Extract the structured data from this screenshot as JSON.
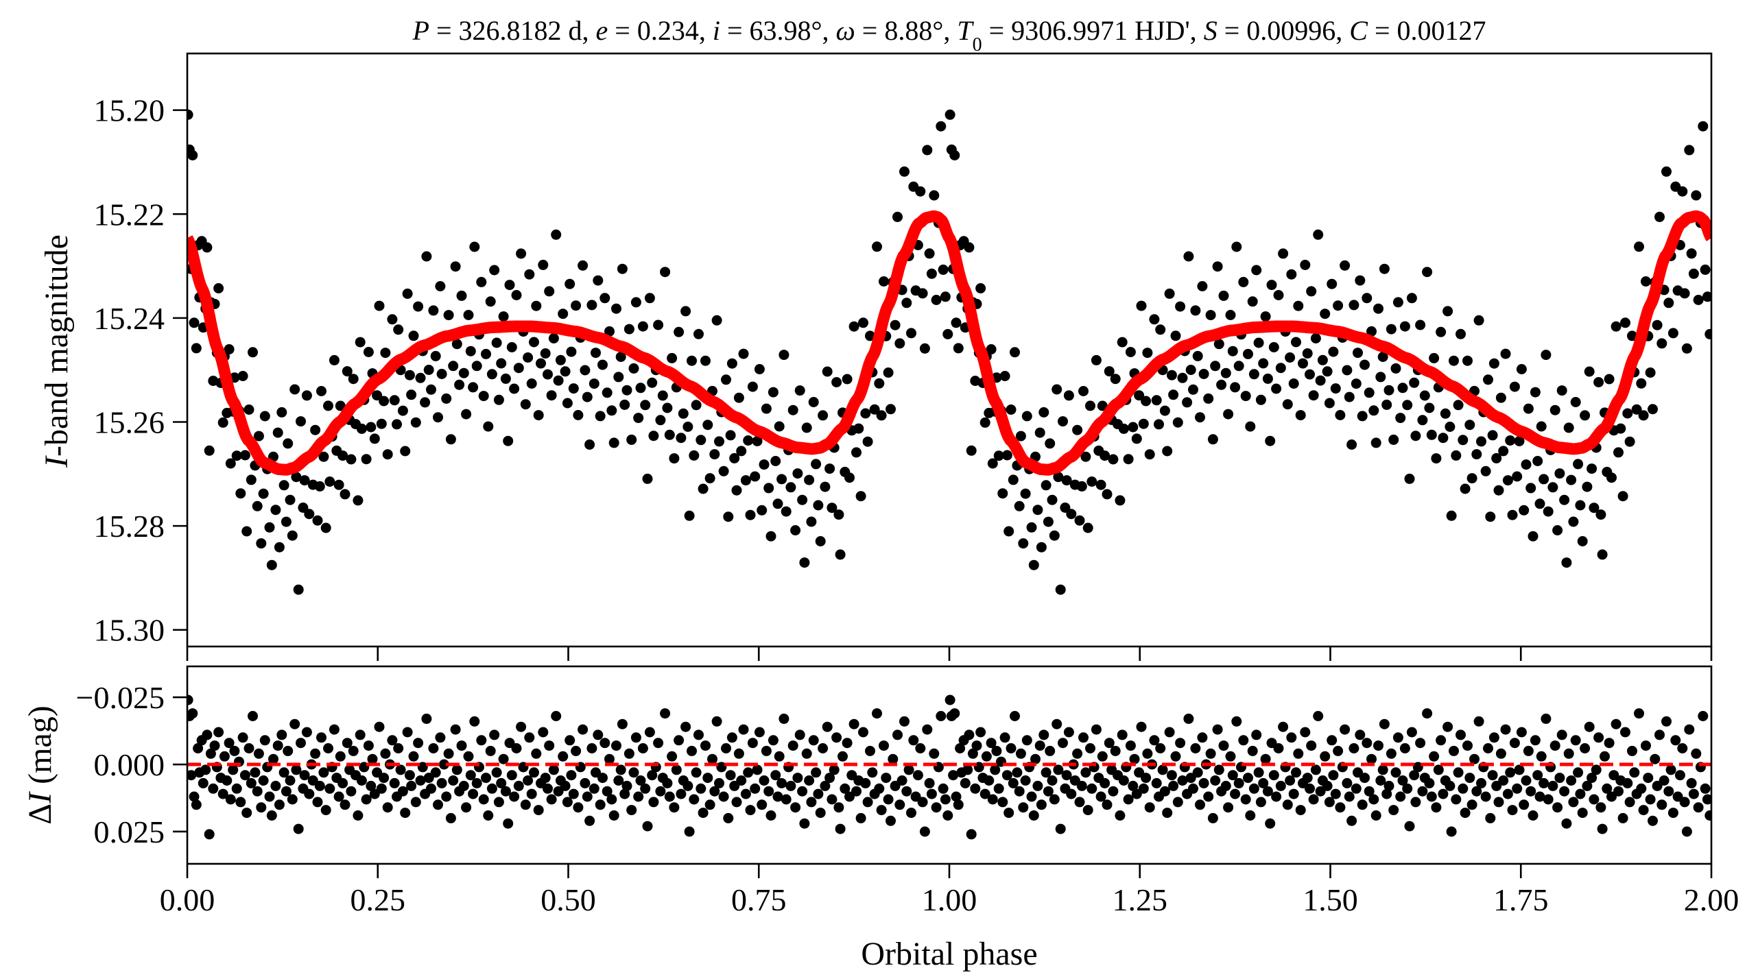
{
  "chart_data": [
    {
      "panel": "light-curve",
      "type": "scatter",
      "title_parts": [
        {
          "t": "P",
          "i": true
        },
        {
          "t": " = 326.8182 d, "
        },
        {
          "t": "e",
          "i": true
        },
        {
          "t": " = 0.234, "
        },
        {
          "t": "i",
          "i": true
        },
        {
          "t": " = 63.98°, "
        },
        {
          "t": "ω",
          "i": true
        },
        {
          "t": " = 8.88°, "
        },
        {
          "t": "T",
          "i": true
        },
        {
          "t": "0",
          "sub": true
        },
        {
          "t": " = 9306.9971 HJD', "
        },
        {
          "t": "S",
          "i": true
        },
        {
          "t": " = 0.00996, "
        },
        {
          "t": "C",
          "i": true
        },
        {
          "t": " = 0.00127"
        }
      ],
      "title": "P = 326.8182 d, e = 0.234, i = 63.98°, ω = 8.88°, T0 = 9306.9971 HJD', S = 0.00996, C = 0.00127",
      "ylabel_italic": "I",
      "ylabel_rest": "-band magnitude",
      "ylabel": "I-band magnitude",
      "xlim": [
        0.0,
        2.0
      ],
      "ylim": [
        15.1891,
        15.3032
      ],
      "y_inverted": true,
      "yticks": [
        15.2,
        15.22,
        15.24,
        15.26,
        15.28,
        15.3
      ],
      "ytick_labels": [
        "15.20",
        "15.22",
        "15.24",
        "15.26",
        "15.28",
        "15.30"
      ],
      "xticks": [
        0.0,
        0.25,
        0.5,
        0.75,
        1.0,
        1.25,
        1.5,
        1.75,
        2.0
      ],
      "grid": false,
      "marker_color": "#000000",
      "model_color": "#ff0000",
      "model_curve": {
        "phase": [
          0.0,
          0.02,
          0.04,
          0.06,
          0.08,
          0.1,
          0.12,
          0.13,
          0.14,
          0.16,
          0.18,
          0.2,
          0.22,
          0.25,
          0.28,
          0.31,
          0.34,
          0.37,
          0.4,
          0.43,
          0.45,
          0.48,
          0.51,
          0.54,
          0.57,
          0.6,
          0.63,
          0.66,
          0.69,
          0.72,
          0.75,
          0.78,
          0.8,
          0.82,
          0.83,
          0.84,
          0.86,
          0.88,
          0.9,
          0.92,
          0.94,
          0.96,
          0.97,
          0.98,
          0.985,
          0.99,
          1.0
        ],
        "magnitude": [
          15.2246,
          15.2345,
          15.246,
          15.256,
          15.2635,
          15.2678,
          15.2691,
          15.2692,
          15.2688,
          15.2667,
          15.2636,
          15.26,
          15.2565,
          15.2518,
          15.248,
          15.2453,
          15.2435,
          15.2424,
          15.2418,
          15.2416,
          15.2416,
          15.2419,
          15.2426,
          15.2438,
          15.2455,
          15.2477,
          15.2503,
          15.2531,
          15.2561,
          15.2591,
          15.2618,
          15.264,
          15.2649,
          15.2652,
          15.265,
          15.2643,
          15.2612,
          15.2555,
          15.2472,
          15.2375,
          15.228,
          15.2218,
          15.2207,
          15.2204,
          15.2206,
          15.2212,
          15.2246
        ]
      }
    },
    {
      "panel": "residuals",
      "type": "scatter",
      "ylabel_prefix": "Δ",
      "ylabel_italic": "I",
      "ylabel_rest": " (mag)",
      "ylabel": "ΔI (mag)",
      "xlabel": "Orbital phase",
      "xlim": [
        0.0,
        2.0
      ],
      "ylim": [
        -0.0365,
        0.037
      ],
      "y_inverted": true,
      "yticks": [
        -0.025,
        0.0,
        0.025
      ],
      "ytick_labels": [
        "−0.025",
        "0.000",
        "0.025"
      ],
      "xticks": [
        0.0,
        0.25,
        0.5,
        0.75,
        1.0,
        1.25,
        1.5,
        1.75,
        2.0
      ],
      "xtick_labels": [
        "0.00",
        "0.25",
        "0.50",
        "0.75",
        "1.00",
        "1.25",
        "1.50",
        "1.75",
        "2.00"
      ],
      "zero_line": 0.0,
      "zero_line_style": "dashed",
      "zero_line_color": "#ff0000",
      "grid": false,
      "points_note_phase_repeat": [
        0,
        1
      ],
      "points": {
        "phase": [
          0.001,
          0.003,
          0.005,
          0.007,
          0.009,
          0.012,
          0.014,
          0.016,
          0.019,
          0.021,
          0.024,
          0.026,
          0.029,
          0.031,
          0.034,
          0.036,
          0.039,
          0.041,
          0.044,
          0.047,
          0.049,
          0.052,
          0.055,
          0.057,
          0.06,
          0.062,
          0.065,
          0.068,
          0.07,
          0.073,
          0.076,
          0.078,
          0.081,
          0.084,
          0.086,
          0.089,
          0.092,
          0.094,
          0.097,
          0.1,
          0.102,
          0.105,
          0.108,
          0.111,
          0.113,
          0.116,
          0.119,
          0.121,
          0.124,
          0.127,
          0.13,
          0.132,
          0.135,
          0.138,
          0.141,
          0.143,
          0.146,
          0.149,
          0.152,
          0.154,
          0.157,
          0.16,
          0.163,
          0.165,
          0.168,
          0.171,
          0.174,
          0.176,
          0.179,
          0.182,
          0.185,
          0.187,
          0.19,
          0.193,
          0.196,
          0.199,
          0.201,
          0.204,
          0.207,
          0.21,
          0.213,
          0.215,
          0.218,
          0.221,
          0.224,
          0.227,
          0.229,
          0.232,
          0.235,
          0.238,
          0.241,
          0.243,
          0.246,
          0.249,
          0.252,
          0.255,
          0.258,
          0.26,
          0.263,
          0.266,
          0.269,
          0.272,
          0.275,
          0.277,
          0.28,
          0.283,
          0.286,
          0.289,
          0.292,
          0.294,
          0.297,
          0.3,
          0.303,
          0.306,
          0.309,
          0.312,
          0.314,
          0.317,
          0.32,
          0.323,
          0.326,
          0.329,
          0.332,
          0.334,
          0.337,
          0.34,
          0.343,
          0.346,
          0.349,
          0.352,
          0.354,
          0.357,
          0.36,
          0.363,
          0.366,
          0.369,
          0.372,
          0.375,
          0.377,
          0.38,
          0.383,
          0.386,
          0.389,
          0.392,
          0.395,
          0.398,
          0.4,
          0.403,
          0.406,
          0.409,
          0.412,
          0.415,
          0.418,
          0.421,
          0.423,
          0.426,
          0.429,
          0.432,
          0.435,
          0.438,
          0.441,
          0.444,
          0.447,
          0.449,
          0.452,
          0.455,
          0.458,
          0.461,
          0.464,
          0.467,
          0.47,
          0.473,
          0.475,
          0.478,
          0.481,
          0.484,
          0.487,
          0.49,
          0.493,
          0.496,
          0.499,
          0.502,
          0.504,
          0.507,
          0.51,
          0.513,
          0.516,
          0.519,
          0.522,
          0.525,
          0.528,
          0.531,
          0.534,
          0.536,
          0.539,
          0.542,
          0.545,
          0.548,
          0.551,
          0.554,
          0.557,
          0.56,
          0.563,
          0.566,
          0.569,
          0.571,
          0.574,
          0.577,
          0.58,
          0.583,
          0.586,
          0.589,
          0.592,
          0.595,
          0.598,
          0.601,
          0.604,
          0.607,
          0.61,
          0.612,
          0.615,
          0.618,
          0.621,
          0.624,
          0.627,
          0.63,
          0.633,
          0.636,
          0.639,
          0.642,
          0.645,
          0.648,
          0.651,
          0.654,
          0.657,
          0.659,
          0.662,
          0.665,
          0.668,
          0.671,
          0.674,
          0.677,
          0.68,
          0.683,
          0.686,
          0.689,
          0.692,
          0.695,
          0.698,
          0.701,
          0.704,
          0.707,
          0.71,
          0.713,
          0.715,
          0.718,
          0.721,
          0.724,
          0.727,
          0.73,
          0.733,
          0.736,
          0.739,
          0.742,
          0.745,
          0.748,
          0.751,
          0.754,
          0.757,
          0.76,
          0.763,
          0.766,
          0.769,
          0.772,
          0.775,
          0.777,
          0.78,
          0.783,
          0.786,
          0.789,
          0.792,
          0.795,
          0.798,
          0.801,
          0.804,
          0.807,
          0.81,
          0.813,
          0.816,
          0.819,
          0.822,
          0.825,
          0.828,
          0.831,
          0.834,
          0.837,
          0.84,
          0.843,
          0.846,
          0.849,
          0.852,
          0.855,
          0.857,
          0.86,
          0.863,
          0.866,
          0.869,
          0.872,
          0.875,
          0.878,
          0.881,
          0.884,
          0.887,
          0.89,
          0.893,
          0.896,
          0.899,
          0.902,
          0.905,
          0.908,
          0.911,
          0.914,
          0.917,
          0.92,
          0.923,
          0.926,
          0.929,
          0.932,
          0.935,
          0.938,
          0.941,
          0.944,
          0.947,
          0.95,
          0.953,
          0.956,
          0.959,
          0.962,
          0.965,
          0.968,
          0.971,
          0.974,
          0.977,
          0.98,
          0.983,
          0.986,
          0.989,
          0.992,
          0.995,
          0.998
        ],
        "residual": [
          -0.024,
          -0.018,
          0.004,
          -0.019,
          0.012,
          0.015,
          -0.006,
          0.003,
          -0.009,
          0.007,
          0.002,
          -0.011,
          0.026,
          -0.004,
          0.009,
          -0.007,
          0.001,
          -0.012,
          0.005,
          0.011,
          -0.003,
          0.006,
          -0.008,
          0.013,
          0.002,
          -0.005,
          0.009,
          -0.001,
          0.014,
          -0.01,
          0.004,
          0.018,
          -0.006,
          0.007,
          -0.018,
          0.003,
          0.01,
          -0.004,
          0.016,
          0.006,
          -0.009,
          0.001,
          0.012,
          0.019,
          -0.002,
          0.008,
          -0.007,
          0.015,
          -0.011,
          0.003,
          0.01,
          -0.005,
          0.006,
          0.013,
          -0.015,
          0.002,
          0.024,
          -0.008,
          0.009,
          0.004,
          -0.012,
          0.011,
          0.0,
          0.006,
          -0.004,
          0.014,
          0.008,
          -0.01,
          0.003,
          0.017,
          -0.006,
          0.009,
          0.001,
          -0.013,
          0.005,
          0.012,
          -0.003,
          0.007,
          0.015,
          -0.008,
          0.002,
          0.01,
          -0.005,
          0.004,
          0.019,
          -0.011,
          0.006,
          0.001,
          0.013,
          -0.007,
          0.008,
          -0.002,
          0.011,
          0.003,
          -0.014,
          0.009,
          0.005,
          -0.004,
          0.016,
          0.0,
          -0.009,
          0.007,
          0.012,
          -0.006,
          0.002,
          0.01,
          0.018,
          -0.012,
          0.004,
          0.008,
          -0.003,
          0.014,
          -0.008,
          0.006,
          0.001,
          0.011,
          -0.017,
          0.005,
          0.009,
          -0.006,
          0.003,
          0.015,
          -0.01,
          0.007,
          0.0,
          0.012,
          -0.004,
          0.02,
          0.006,
          -0.013,
          0.002,
          0.01,
          -0.007,
          0.008,
          0.016,
          -0.003,
          0.004,
          0.011,
          -0.016,
          0.007,
          0.001,
          -0.009,
          0.013,
          0.005,
          0.019,
          -0.005,
          0.009,
          -0.011,
          0.003,
          0.014,
          0.007,
          -0.002,
          0.01,
          0.022,
          -0.008,
          0.004,
          0.012,
          -0.006,
          0.008,
          -0.014,
          0.001,
          0.015,
          0.006,
          -0.01,
          0.011,
          0.003,
          -0.004,
          0.017,
          0.007,
          -0.012,
          0.005,
          0.009,
          -0.007,
          0.013,
          0.002,
          -0.018,
          0.01,
          0.006,
          -0.003,
          0.008,
          0.014,
          -0.009,
          0.004,
          0.011,
          -0.005,
          0.016,
          0.001,
          -0.013,
          0.007,
          0.012,
          0.021,
          -0.006,
          0.009,
          0.003,
          -0.011,
          0.015,
          0.005,
          -0.008,
          0.01,
          -0.002,
          0.013,
          0.019,
          -0.007,
          0.006,
          0.002,
          -0.015,
          0.011,
          0.008,
          -0.004,
          0.017,
          0.003,
          -0.01,
          0.012,
          0.006,
          -0.006,
          0.009,
          0.023,
          -0.012,
          0.004,
          0.014,
          0.001,
          -0.008,
          0.01,
          0.005,
          -0.019,
          0.007,
          0.012,
          -0.003,
          0.016,
          0.002,
          -0.009,
          0.011,
          0.006,
          -0.014,
          0.008,
          0.025,
          -0.005,
          0.013,
          0.003,
          -0.011,
          0.009,
          0.018,
          -0.007,
          0.005,
          0.015,
          -0.002,
          0.01,
          -0.016,
          0.007,
          0.001,
          0.012,
          -0.006,
          0.02,
          0.004,
          -0.01,
          0.008,
          0.014,
          -0.004,
          0.006,
          -0.013,
          0.011,
          0.003,
          0.017,
          -0.008,
          0.009,
          0.002,
          -0.012,
          0.015,
          0.006,
          -0.005,
          0.01,
          0.019,
          -0.009,
          0.004,
          0.012,
          -0.003,
          0.007,
          -0.017,
          0.013,
          0.001,
          0.008,
          -0.007,
          0.016,
          0.005,
          -0.011,
          0.01,
          0.022,
          -0.004,
          0.006,
          0.014,
          -0.009,
          0.003,
          0.011,
          0.018,
          -0.006,
          0.008,
          -0.014,
          0.005,
          0.013,
          0.002,
          -0.01,
          0.016,
          0.024,
          -0.003,
          0.009,
          -0.008,
          0.012,
          0.004,
          -0.015,
          0.01,
          0.006,
          0.02,
          -0.012,
          0.007,
          0.014,
          -0.005,
          0.003,
          0.011,
          -0.019,
          0.009,
          0.017,
          -0.007,
          0.005,
          0.013,
          0.021,
          -0.002,
          0.008,
          -0.011,
          0.015,
          0.006,
          -0.016,
          0.01,
          0.002,
          0.018,
          -0.009,
          0.012,
          0.004,
          -0.006,
          0.014,
          0.025,
          -0.013,
          0.007,
          0.011,
          -0.004,
          0.016,
          0.001,
          -0.018,
          0.009,
          0.013,
          0.019
        ]
      }
    }
  ]
}
